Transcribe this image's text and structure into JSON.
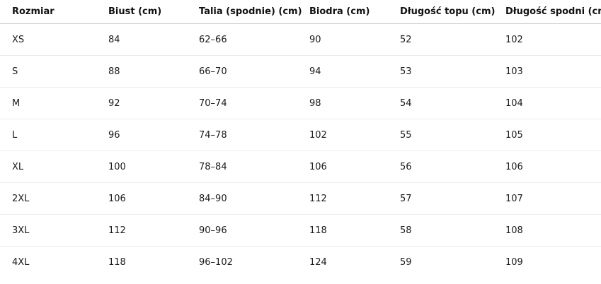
{
  "table": {
    "headers": [
      "Rozmiar",
      "Biust (cm)",
      "Talia (spodnie) (cm)",
      "Biodra (cm)",
      "Długość topu (cm)",
      "Długość spodni (cm)"
    ],
    "rows": [
      [
        "XS",
        "84",
        "62–66",
        "90",
        "52",
        "102"
      ],
      [
        "S",
        "88",
        "66–70",
        "94",
        "53",
        "103"
      ],
      [
        "M",
        "92",
        "70–74",
        "98",
        "54",
        "104"
      ],
      [
        "L",
        "96",
        "74–78",
        "102",
        "55",
        "105"
      ],
      [
        "XL",
        "100",
        "78–84",
        "106",
        "56",
        "106"
      ],
      [
        "2XL",
        "106",
        "84–90",
        "112",
        "57",
        "107"
      ],
      [
        "3XL",
        "112",
        "90–96",
        "118",
        "58",
        "108"
      ],
      [
        "4XL",
        "118",
        "96–102",
        "124",
        "59",
        "109"
      ]
    ]
  }
}
